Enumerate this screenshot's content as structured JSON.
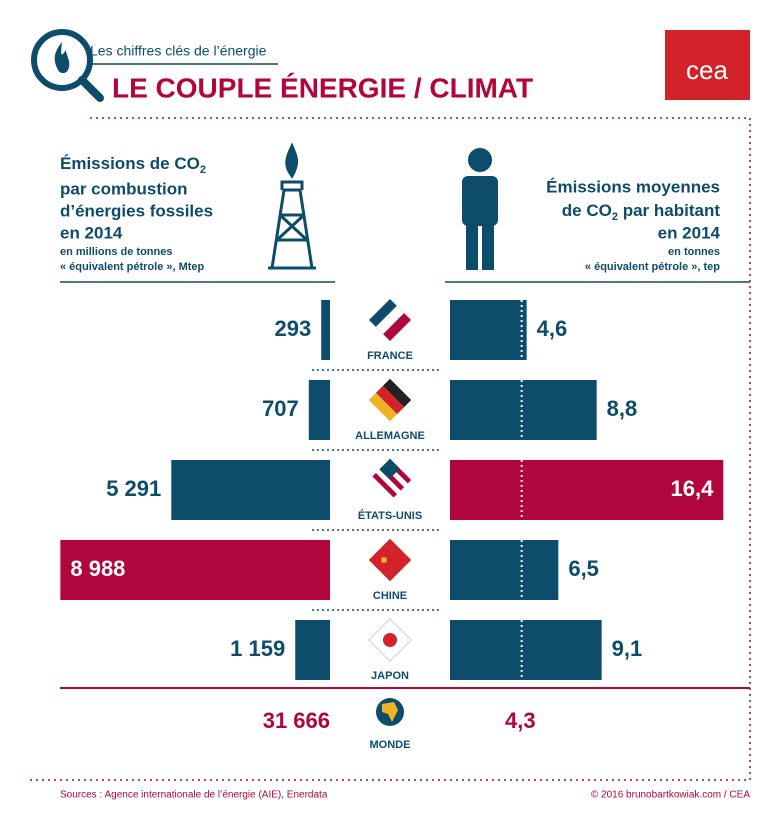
{
  "header": {
    "kicker": "Les chiffres clés de l’énergie",
    "title": "LE COUPLE ÉNERGIE / CLIMAT",
    "logo": "cea"
  },
  "chart_data": {
    "type": "butterfly",
    "left_heading": [
      "Émissions de CO",
      "2",
      "par combustion",
      "d’énergies fossiles",
      "en 2014",
      "en millions de tonnes",
      "« équivalent pétrole », Mtep"
    ],
    "right_heading": [
      "Émissions moyennes",
      "de CO",
      "2",
      " par habitant",
      "en 2014",
      "en tonnes",
      "« équivalent pétrole », tep"
    ],
    "categories": [
      "FRANCE",
      "ALLEMAGNE",
      "ÉTATS-UNIS",
      "CHINE",
      "JAPON"
    ],
    "series": [
      {
        "values": [
          293,
          707,
          5291,
          8988,
          1159
        ],
        "value_labels": [
          "293",
          "707",
          "5 291",
          "8 988",
          "1 159"
        ],
        "colors": [
          "#0d4c6a",
          "#0d4c6a",
          "#0d4c6a",
          "#b0063d",
          "#0d4c6a"
        ]
      },
      {
        "values": [
          4.6,
          8.8,
          16.4,
          6.5,
          9.1
        ],
        "value_labels": [
          "4,6",
          "8,8",
          "16,4",
          "6,5",
          "9,1"
        ],
        "colors": [
          "#0d4c6a",
          "#0d4c6a",
          "#b0063d",
          "#0d4c6a",
          "#0d4c6a"
        ]
      }
    ],
    "xlim": [
      0,
      9000
    ],
    "x2lim": [
      0,
      18
    ],
    "world": {
      "label": "MONDE",
      "left": 31666,
      "left_label": "31 666",
      "right": 4.3,
      "right_label": "4,3",
      "color": "#b0063d"
    }
  },
  "footer": {
    "sources": "Sources : Agence internationale de l’énergie (AIE), Enerdata",
    "credit": "© 2016 brunobartkowiak.com / CEA"
  }
}
